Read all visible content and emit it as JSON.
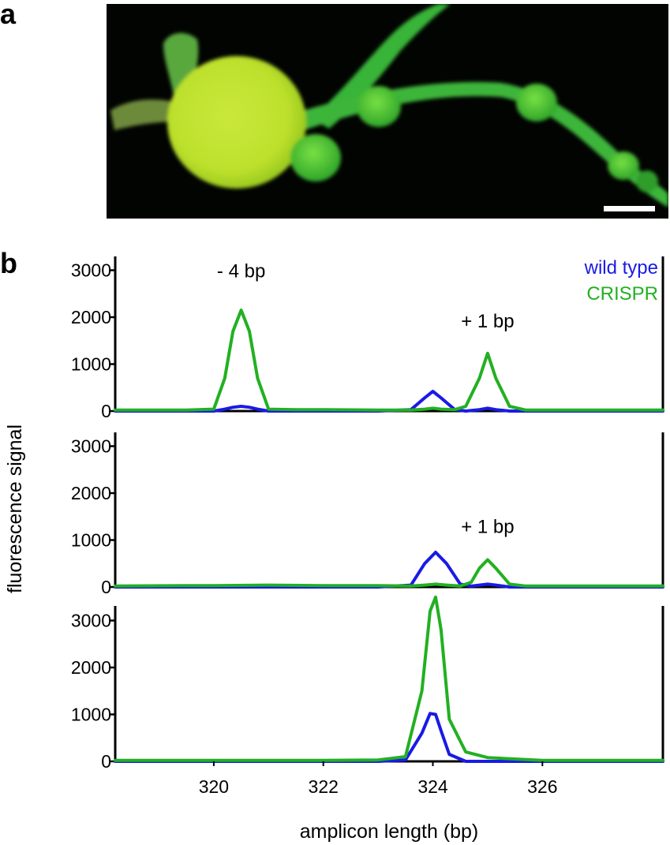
{
  "panel_labels": {
    "a": "a",
    "b": "b"
  },
  "micrograph": {
    "description_colors": {
      "background": "#000000",
      "tissue": "#3cc83c",
      "bulb": "#d4ec2a"
    },
    "scale_bar": true
  },
  "chart_data": [
    {
      "type": "line",
      "panel": "b-top",
      "x": [
        318.2,
        319.5,
        320.0,
        320.2,
        320.35,
        320.5,
        320.65,
        320.8,
        321.0,
        321.5,
        322.0,
        323.0,
        323.6,
        323.85,
        324.0,
        324.15,
        324.4,
        324.6,
        324.85,
        325.0,
        325.15,
        325.4,
        325.7,
        326.5,
        328.2
      ],
      "series": [
        {
          "name": "wild type",
          "color": "#1a1ae6",
          "values": [
            0,
            0,
            0,
            40,
            80,
            100,
            80,
            40,
            0,
            0,
            0,
            0,
            30,
            280,
            420,
            280,
            30,
            0,
            30,
            60,
            30,
            0,
            0,
            0,
            0
          ]
        },
        {
          "name": "CRISPR",
          "color": "#22b022",
          "values": [
            20,
            20,
            40,
            700,
            1700,
            2150,
            1700,
            700,
            40,
            30,
            30,
            20,
            20,
            40,
            60,
            40,
            30,
            100,
            700,
            1230,
            700,
            100,
            20,
            20,
            20
          ]
        }
      ],
      "ylim": [
        0,
        3300
      ],
      "yticks": [
        "0",
        "1000",
        "2000",
        "3000"
      ],
      "annotations": [
        {
          "text": "- 4 bp",
          "x": 320.5,
          "y": 2850
        },
        {
          "text": "+ 1 bp",
          "x": 325.0,
          "y": 1780
        }
      ],
      "legend": {
        "position": "top-right",
        "entries": [
          "wild type",
          "CRISPR"
        ]
      }
    },
    {
      "type": "line",
      "panel": "b-middle",
      "x": [
        318.2,
        319.5,
        320.0,
        321.0,
        322.0,
        323.0,
        323.6,
        323.85,
        324.05,
        324.25,
        324.5,
        324.7,
        324.85,
        325.0,
        325.15,
        325.4,
        325.7,
        326.5,
        328.2
      ],
      "series": [
        {
          "name": "wild type",
          "color": "#1a1ae6",
          "values": [
            0,
            0,
            0,
            0,
            0,
            0,
            40,
            500,
            740,
            500,
            60,
            20,
            40,
            60,
            40,
            0,
            0,
            0,
            0
          ]
        },
        {
          "name": "CRISPR",
          "color": "#22b022",
          "values": [
            20,
            30,
            30,
            40,
            30,
            30,
            20,
            40,
            60,
            40,
            20,
            100,
            400,
            580,
            400,
            60,
            20,
            20,
            20
          ]
        }
      ],
      "ylim": [
        0,
        3300
      ],
      "yticks": [
        "0",
        "1000",
        "2000",
        "3000"
      ],
      "annotations": [
        {
          "text": "+ 1 bp",
          "x": 325.0,
          "y": 1150
        }
      ]
    },
    {
      "type": "line",
      "panel": "b-bottom",
      "x": [
        318.2,
        320.0,
        322.0,
        323.0,
        323.5,
        323.8,
        323.95,
        324.05,
        324.15,
        324.3,
        324.6,
        325.0,
        326.0,
        328.2
      ],
      "series": [
        {
          "name": "wild type",
          "color": "#1a1ae6",
          "values": [
            0,
            0,
            0,
            0,
            30,
            600,
            1020,
            1000,
            650,
            150,
            0,
            0,
            0,
            0
          ]
        },
        {
          "name": "CRISPR",
          "color": "#22b022",
          "values": [
            20,
            20,
            20,
            30,
            100,
            1500,
            3200,
            3500,
            2800,
            900,
            200,
            80,
            20,
            20
          ]
        }
      ],
      "ylim": [
        0,
        3300
      ],
      "yticks": [
        "0",
        "1000",
        "2000",
        "3000"
      ]
    }
  ],
  "axes": {
    "xlim": [
      318.2,
      328.2
    ],
    "xticks": [
      "320",
      "322",
      "324",
      "326"
    ],
    "xlabel": "amplicon length (bp)",
    "ylabel": "fluorescence signal"
  }
}
